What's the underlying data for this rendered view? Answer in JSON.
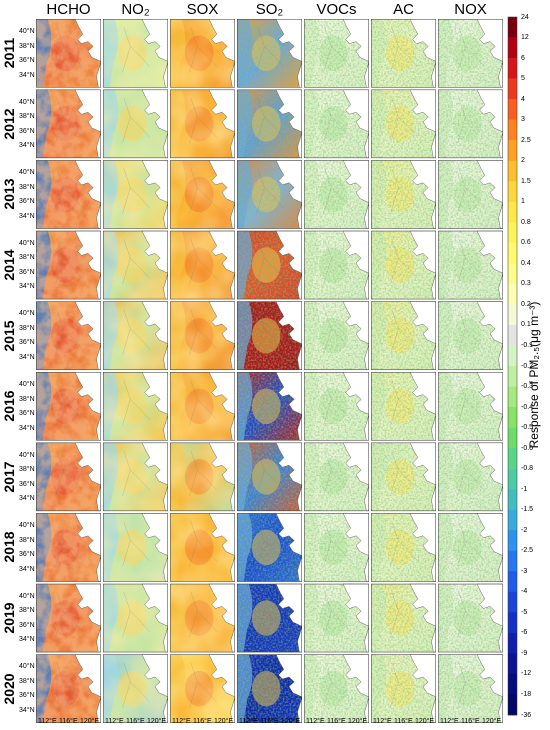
{
  "figure": {
    "columns": [
      {
        "label": "HCHO",
        "style": "hcho"
      },
      {
        "label": "NO₂",
        "style": "no2"
      },
      {
        "label": "SOX",
        "style": "sox"
      },
      {
        "label": "SO₂",
        "style": "so2"
      },
      {
        "label": "VOCs",
        "style": "voc"
      },
      {
        "label": "AC",
        "style": "ac"
      },
      {
        "label": "NOX",
        "style": "nox"
      }
    ],
    "years": [
      "2011",
      "2012",
      "2013",
      "2014",
      "2015",
      "2016",
      "2017",
      "2018",
      "2019",
      "2020"
    ],
    "lat_labels": [
      "40°N",
      "38°N",
      "36°N",
      "34°N"
    ],
    "lon_labels": [
      "112°E",
      "116°E",
      "120°E"
    ],
    "colorbar": {
      "title": "Response of  PM₂.₅(μg m⁻³)",
      "ticks": [
        "24",
        "12",
        "6",
        "5",
        "4",
        "3",
        "2.5",
        "2",
        "1.5",
        "1",
        "0.8",
        "0.6",
        "0.4",
        "0.3",
        "0.2",
        "0.1",
        "-0.1",
        "-0.2",
        "-0.3",
        "-0.4",
        "-0.5",
        "-0.6",
        "-0.8",
        "-1",
        "-1.5",
        "-2",
        "-2.5",
        "-3",
        "-4",
        "-5",
        "-6",
        "-9",
        "-12",
        "-18",
        "-36"
      ],
      "colors": [
        "#7a0010",
        "#b30012",
        "#d8141a",
        "#ee3a1c",
        "#f95f20",
        "#fc8222",
        "#fea126",
        "#ffbe30",
        "#ffd63c",
        "#ffe84a",
        "#fff35a",
        "#fffa6e",
        "#fefc8c",
        "#fafdb2",
        "#f5f9d5",
        "#e4e4e4",
        "#d6f3c4",
        "#bff0a2",
        "#a4ea7e",
        "#87e365",
        "#6ddc6a",
        "#5ad489",
        "#4ecaa6",
        "#45bcc2",
        "#3aa9db",
        "#2f92ec",
        "#2677f0",
        "#1f5ce8",
        "#1a43d8",
        "#1530c4",
        "#1120ac",
        "#0c1494",
        "#080d7c",
        "#050866"
      ],
      "colors_low_to_high_note": ""
    },
    "colors": {
      "land_mask": "#ffffff",
      "outline": "#444444"
    }
  }
}
